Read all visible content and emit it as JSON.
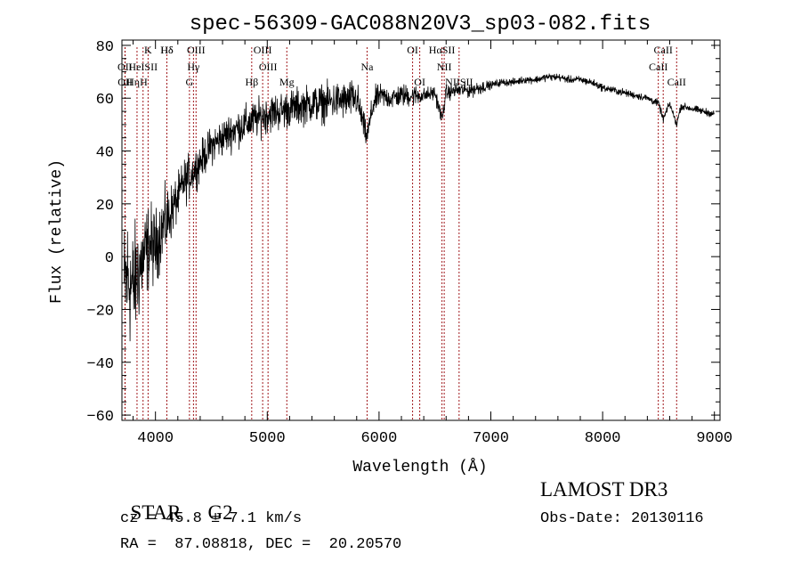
{
  "chart_data": {
    "type": "line",
    "title": "spec-56309-GAC088N20V3_sp03-082.fits",
    "xlabel": "Wavelength (Å)",
    "ylabel": "Flux (relative)",
    "xlim": [
      3700,
      9050
    ],
    "ylim": [
      -62,
      82
    ],
    "xticks": [
      4000,
      5000,
      6000,
      7000,
      8000,
      9000
    ],
    "yticks": [
      -60,
      -40,
      -20,
      0,
      20,
      40,
      60,
      80
    ],
    "grid": false,
    "line_color": "#000000",
    "marker_color": "#a0181c",
    "series": [
      {
        "name": "flux",
        "x": [
          3700,
          3750,
          3800,
          3850,
          3900,
          3950,
          4000,
          4050,
          4100,
          4150,
          4200,
          4250,
          4300,
          4350,
          4400,
          4450,
          4500,
          4600,
          4700,
          4800,
          4900,
          5000,
          5100,
          5200,
          5300,
          5400,
          5500,
          5600,
          5700,
          5800,
          5890,
          5950,
          6000,
          6100,
          6200,
          6300,
          6400,
          6500,
          6563,
          6600,
          6700,
          6800,
          6900,
          7000,
          7100,
          7200,
          7300,
          7400,
          7500,
          7600,
          7700,
          7800,
          7900,
          8000,
          8100,
          8200,
          8300,
          8400,
          8500,
          8542,
          8600,
          8662,
          8700,
          8800,
          8900,
          9000
        ],
        "y": [
          -15,
          -8,
          -12,
          -5,
          0,
          5,
          3,
          10,
          13,
          18,
          22,
          28,
          30,
          33,
          36,
          39,
          42,
          45,
          48,
          50,
          52,
          54,
          55,
          56,
          57,
          58,
          58,
          59,
          59,
          60,
          45,
          58,
          61,
          60,
          61,
          61,
          61,
          62,
          52,
          62,
          63,
          63,
          64,
          65,
          66,
          66,
          67,
          67,
          68,
          68,
          67,
          67,
          66,
          64,
          63,
          62,
          61,
          60,
          58,
          52,
          58,
          50,
          57,
          56,
          55,
          54
        ],
        "noise": [
          18,
          18,
          16,
          14,
          12,
          11,
          10,
          9,
          9,
          7,
          6,
          6,
          6,
          5,
          5,
          5,
          5,
          5,
          5,
          5,
          5,
          5,
          5,
          5,
          5,
          5,
          5,
          5,
          5,
          5,
          3,
          4,
          3,
          3,
          3,
          3,
          2,
          2,
          2,
          2,
          2,
          2,
          2,
          1,
          1,
          1,
          1,
          1,
          1,
          1,
          1,
          1,
          1,
          1,
          1,
          1,
          1,
          1,
          1,
          1,
          1,
          1,
          1,
          1,
          1,
          1
        ]
      }
    ],
    "lines": [
      {
        "name": "Hδ",
        "wl": 4102,
        "row": 0
      },
      {
        "name": "K",
        "wl": 3934,
        "row": 0
      },
      {
        "name": "Hδ",
        "wl": 4102,
        "row": 0
      },
      {
        "name": "OIII",
        "wl": 4363,
        "row": 0
      },
      {
        "name": "OIII",
        "wl": 4959,
        "row": 0
      },
      {
        "name": "OI",
        "wl": 6300,
        "row": 0
      },
      {
        "name": "HαSII",
        "wl": 6563,
        "row": 0
      },
      {
        "name": "CaII",
        "wl": 8542,
        "row": 0
      },
      {
        "name": "OII",
        "wl": 3727,
        "row": 1
      },
      {
        "name": "HeISII",
        "wl": 3889,
        "row": 1
      },
      {
        "name": "Hγ",
        "wl": 4340,
        "row": 1
      },
      {
        "name": "OIII",
        "wl": 5007,
        "row": 1
      },
      {
        "name": "Na",
        "wl": 5893,
        "row": 1
      },
      {
        "name": "NII",
        "wl": 6583,
        "row": 1
      },
      {
        "name": "CaII",
        "wl": 8498,
        "row": 1
      },
      {
        "name": "OII",
        "wl": 3729,
        "row": 2
      },
      {
        "name": "HηH",
        "wl": 3835,
        "row": 2
      },
      {
        "name": "G",
        "wl": 4304,
        "row": 2
      },
      {
        "name": "Hβ",
        "wl": 4861,
        "row": 2
      },
      {
        "name": "Mg",
        "wl": 5175,
        "row": 2
      },
      {
        "name": "OI",
        "wl": 6364,
        "row": 2
      },
      {
        "name": "NIISII",
        "wl": 6716,
        "row": 2
      },
      {
        "name": "CaII",
        "wl": 8662,
        "row": 2
      }
    ]
  },
  "info": {
    "class": "STAR",
    "subclass": "G2",
    "survey": "LAMOST DR3",
    "cz": "cz = 45.8 ± 7.1 km/s",
    "obs_date": "Obs-Date: 20130116",
    "coords": "RA =  87.08818, DEC =  20.20570"
  }
}
